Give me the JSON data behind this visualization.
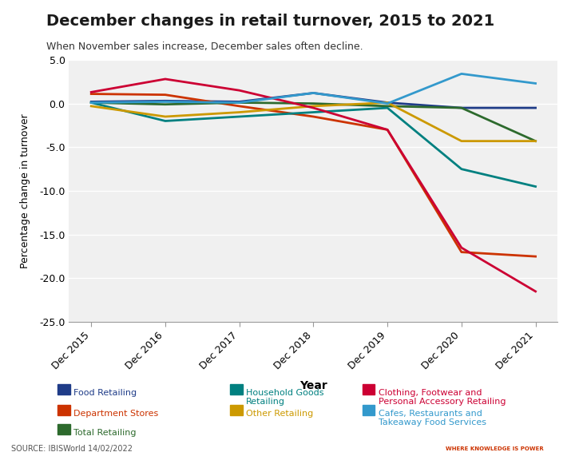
{
  "title": "December changes in retail turnover, 2015 to 2021",
  "subtitle": "When November sales increase, December sales often decline.",
  "xlabel": "Year",
  "ylabel": "Percentage change in turnover",
  "source": "SOURCE: IBISWorld 14/02/2022",
  "years": [
    "Dec 2015",
    "Dec 2016",
    "Dec 2017",
    "Dec 2018",
    "Dec 2019",
    "Dec 2020",
    "Dec 2021"
  ],
  "ylim": [
    -25.0,
    5.0
  ],
  "yticks": [
    5.0,
    0.0,
    -5.0,
    -10.0,
    -15.0,
    -20.0,
    -25.0
  ],
  "background_color": "#f0f0f0",
  "series": [
    {
      "name": "Food Retailing",
      "color": "#1f3c88",
      "values": [
        0.2,
        0.3,
        0.2,
        1.2,
        0.1,
        -0.5,
        -0.5
      ]
    },
    {
      "name": "Department Stores",
      "color": "#cc3300",
      "values": [
        1.1,
        1.0,
        -0.3,
        -1.5,
        -3.0,
        -17.0,
        -17.5
      ]
    },
    {
      "name": "Total Retailing",
      "color": "#2d6a2d",
      "values": [
        0.1,
        -0.1,
        0.1,
        0.0,
        -0.3,
        -0.5,
        -4.3
      ]
    },
    {
      "name": "Household Goods Retailing",
      "color": "#008080",
      "values": [
        0.1,
        -2.0,
        -1.5,
        -1.0,
        -0.5,
        -7.5,
        -9.5
      ]
    },
    {
      "name": "Other Retailing",
      "color": "#cc9900",
      "values": [
        -0.3,
        -1.5,
        -1.0,
        -0.3,
        0.1,
        -4.3,
        -4.3
      ]
    },
    {
      "name": "Clothing, Footwear and\nPersonal Accessory Retailing",
      "color": "#cc0033",
      "values": [
        1.3,
        2.8,
        1.5,
        -0.5,
        -3.0,
        -16.5,
        -21.5
      ]
    },
    {
      "name": "Cafes, Restaurants and\nTakeaway Food Services",
      "color": "#3399cc",
      "values": [
        0.1,
        0.2,
        0.1,
        1.2,
        0.0,
        3.4,
        2.3
      ]
    }
  ],
  "legend_entries": [
    {
      "name": "Food Retailing",
      "color": "#1f3c88"
    },
    {
      "name": "Department Stores",
      "color": "#cc3300"
    },
    {
      "name": "Total Retailing",
      "color": "#2d6a2d"
    },
    {
      "name": "Household Goods Retailing",
      "color": "#008080"
    },
    {
      "name": "Other Retailing",
      "color": "#cc9900"
    },
    {
      "name": "Clothing, Footwear and\nPersonal Accessory Retailing",
      "color": "#cc0033"
    },
    {
      "name": "Cafes, Restaurants and\nTakeaway Food Services",
      "color": "#3399cc"
    }
  ]
}
